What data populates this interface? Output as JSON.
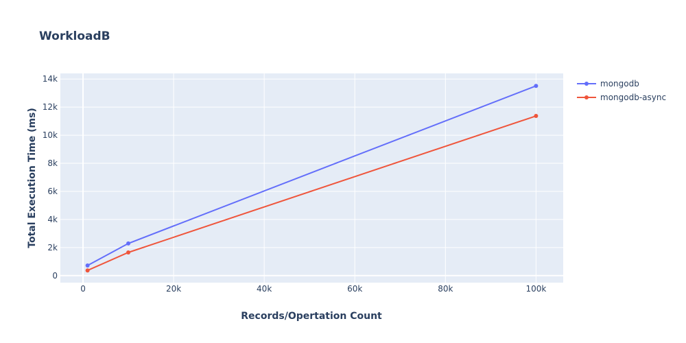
{
  "chart_data": {
    "type": "line",
    "title": "WorkloadB",
    "xlabel": "Records/Opertation Count",
    "ylabel": "Total Execution Time (ms)",
    "xlim": [
      -5000,
      106000
    ],
    "ylim": [
      -500,
      14400
    ],
    "x_ticks": [
      0,
      20000,
      40000,
      60000,
      80000,
      100000
    ],
    "x_tick_labels": [
      "0",
      "20k",
      "40k",
      "60k",
      "80k",
      "100k"
    ],
    "y_ticks": [
      0,
      2000,
      4000,
      6000,
      8000,
      10000,
      12000,
      14000
    ],
    "y_tick_labels": [
      "0",
      "2k",
      "4k",
      "6k",
      "8k",
      "10k",
      "12k",
      "14k"
    ],
    "grid": true,
    "legend_position": "top-right",
    "series": [
      {
        "name": "mongodb",
        "color": "#636efa",
        "x": [
          1000,
          10000,
          100000
        ],
        "y": [
          720,
          2290,
          13510
        ]
      },
      {
        "name": "mongodb-async",
        "color": "#ef553b",
        "x": [
          1000,
          10000,
          100000
        ],
        "y": [
          370,
          1650,
          11370
        ]
      }
    ]
  }
}
